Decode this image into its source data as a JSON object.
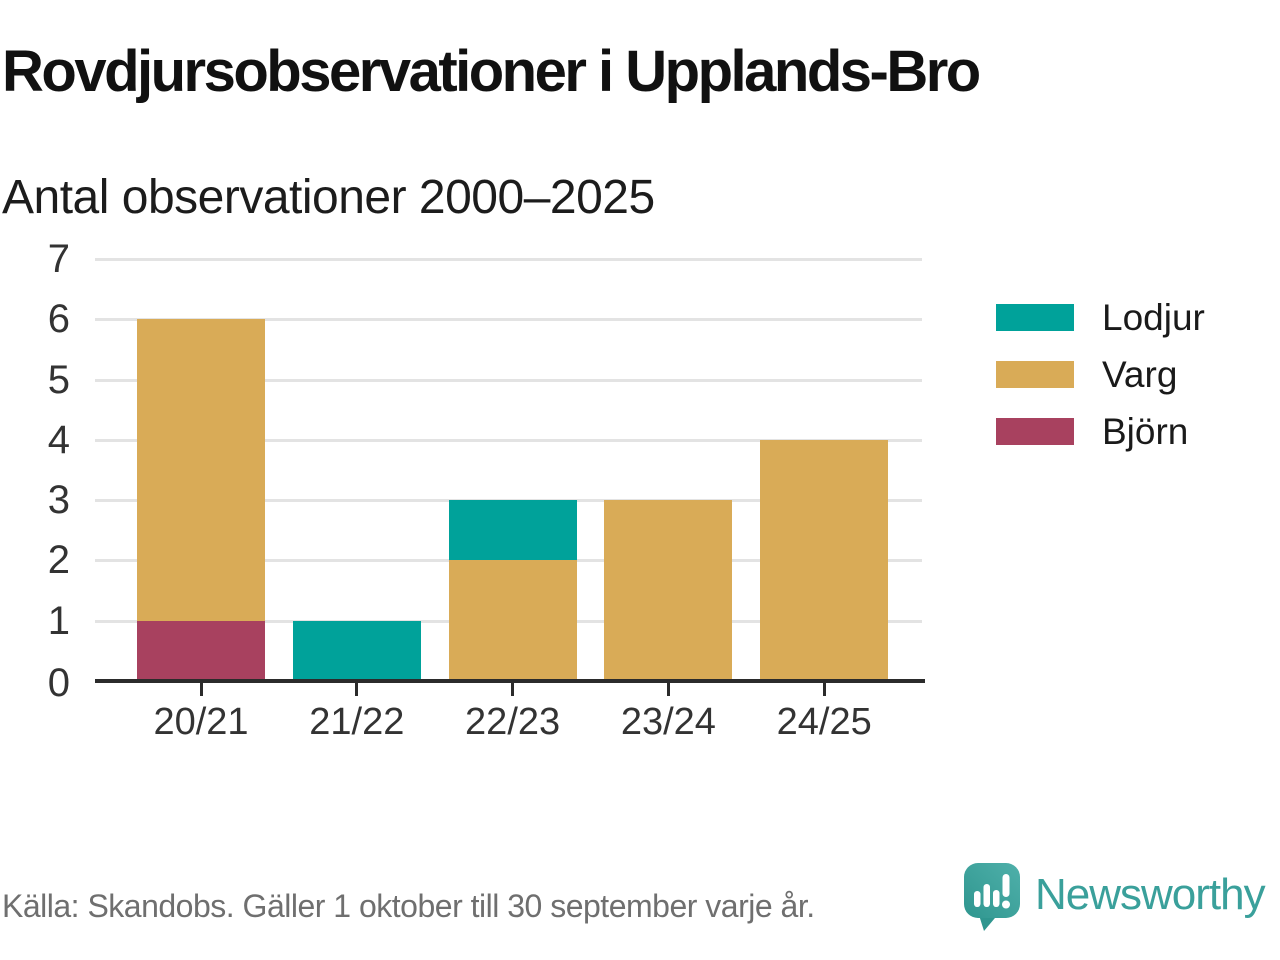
{
  "header": {
    "title": "Rovdjursobservationer i Upplands-Bro",
    "subtitle": "Antal observationer 2000–2025"
  },
  "chart_data": {
    "type": "bar",
    "stacked": true,
    "title": "Rovdjursobservationer i Upplands-Bro",
    "subtitle": "Antal observationer 2000–2025",
    "categories": [
      "20/21",
      "21/22",
      "22/23",
      "23/24",
      "24/25"
    ],
    "series": [
      {
        "name": "Lodjur",
        "color": "#00a29a",
        "values": [
          0,
          1,
          1,
          0,
          0
        ]
      },
      {
        "name": "Varg",
        "color": "#d9ab57",
        "values": [
          5,
          0,
          2,
          3,
          4
        ]
      },
      {
        "name": "Björn",
        "color": "#a8415f",
        "values": [
          1,
          0,
          0,
          0,
          0
        ]
      }
    ],
    "stack_order": [
      "Björn",
      "Varg",
      "Lodjur"
    ],
    "totals": [
      6,
      1,
      3,
      3,
      4
    ],
    "xlabel": "",
    "ylabel": "",
    "ylim": [
      0,
      7
    ],
    "yticks": [
      0,
      1,
      2,
      3,
      4,
      5,
      6,
      7
    ],
    "grid": "horizontal",
    "legend_position": "right"
  },
  "footer": {
    "source": "Källa: Skandobs. Gäller 1 oktober till 30 september varje år.",
    "brand": "Newsworthy",
    "brand_color": "#3aa09b"
  }
}
